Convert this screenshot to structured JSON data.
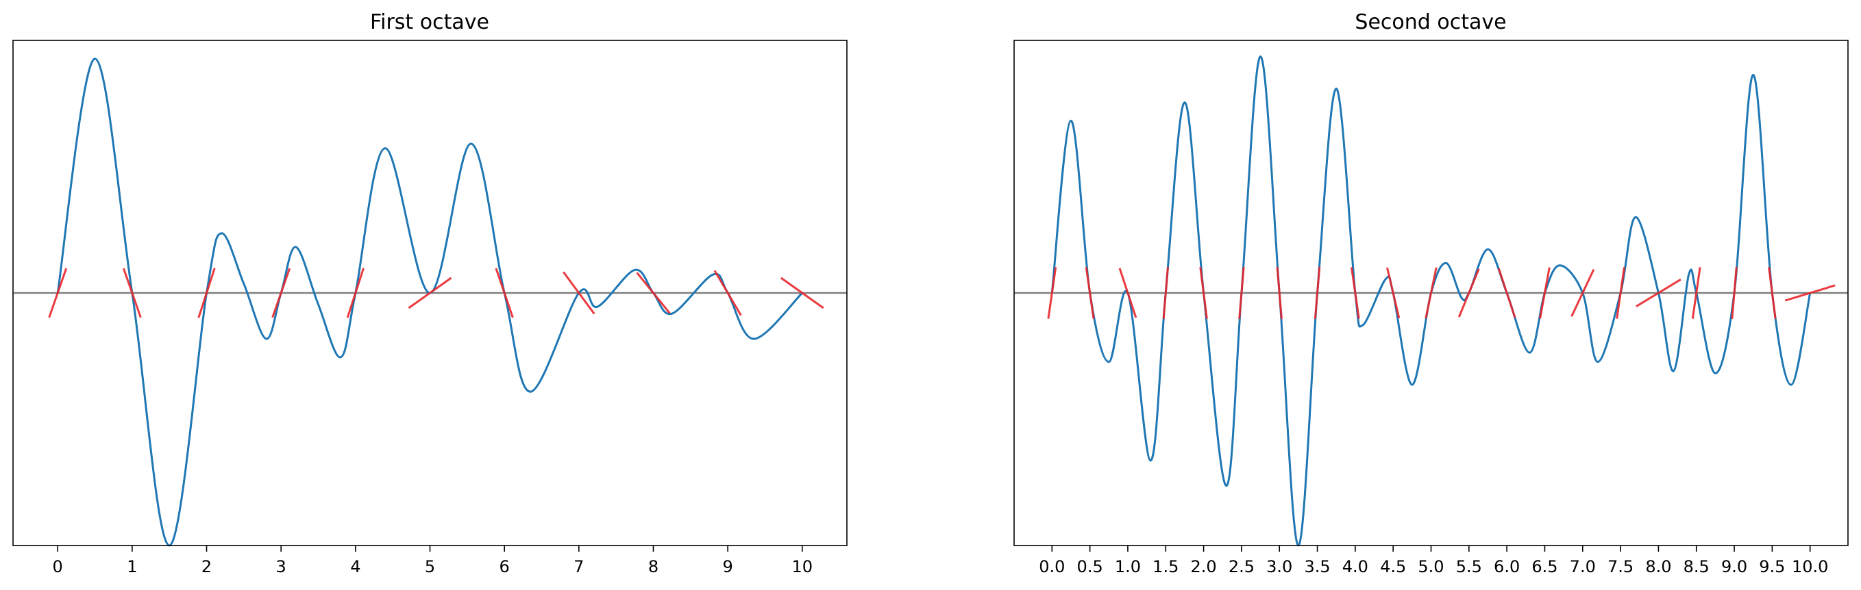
{
  "colors": {
    "curve": "#1f77b4",
    "tangent": "#e8262b",
    "zero_line": "#808080",
    "frame": "#000000"
  },
  "chart_data": [
    {
      "type": "line",
      "title": "First octave",
      "xlabel": "",
      "ylabel": "",
      "xlim": [
        -0.6,
        10.6
      ],
      "ylim": [
        -1.1,
        1.1
      ],
      "xticks": [
        0,
        1,
        2,
        3,
        4,
        5,
        6,
        7,
        8,
        9,
        10
      ],
      "xtick_labels": [
        "0",
        "1",
        "2",
        "3",
        "4",
        "5",
        "6",
        "7",
        "8",
        "9",
        "10"
      ],
      "yticks_visible": false,
      "grid": false,
      "zero_line": 0,
      "knots": [
        0,
        1,
        2,
        3,
        4,
        5,
        6,
        7,
        8,
        9,
        10
      ],
      "slopes": [
        0.93,
        -0.93,
        1.0,
        0.93,
        1.0,
        0.23,
        -0.95,
        -0.44,
        -0.4,
        -0.55,
        -0.23
      ],
      "series": [
        {
          "values": [
            {
              "x": 0,
              "y": 0
            },
            {
              "x": 0.5,
              "y": 1.02
            },
            {
              "x": 1,
              "y": 0
            },
            {
              "x": 1.5,
              "y": -1.1
            },
            {
              "x": 2,
              "y": 0
            },
            {
              "x": 2.2,
              "y": 0.26
            },
            {
              "x": 2.5,
              "y": 0.04
            },
            {
              "x": 2.8,
              "y": -0.2
            },
            {
              "x": 3,
              "y": 0
            },
            {
              "x": 3.2,
              "y": 0.2
            },
            {
              "x": 3.5,
              "y": -0.05
            },
            {
              "x": 3.8,
              "y": -0.28
            },
            {
              "x": 4,
              "y": 0
            },
            {
              "x": 4.4,
              "y": 0.63
            },
            {
              "x": 5,
              "y": 0
            },
            {
              "x": 5.55,
              "y": 0.65
            },
            {
              "x": 6,
              "y": 0
            },
            {
              "x": 6.35,
              "y": -0.43
            },
            {
              "x": 7,
              "y": 0
            },
            {
              "x": 7.25,
              "y": -0.06
            },
            {
              "x": 7.75,
              "y": 0.1
            },
            {
              "x": 8,
              "y": 0
            },
            {
              "x": 8.25,
              "y": -0.09
            },
            {
              "x": 8.8,
              "y": 0.08
            },
            {
              "x": 9,
              "y": 0
            },
            {
              "x": 9.35,
              "y": -0.2
            },
            {
              "x": 10,
              "y": 0
            }
          ]
        }
      ]
    },
    {
      "type": "line",
      "title": "Second octave",
      "xlabel": "",
      "ylabel": "",
      "xlim": [
        -0.5,
        10.5
      ],
      "ylim": [
        -1.1,
        1.1
      ],
      "xticks": [
        0,
        0.5,
        1,
        1.5,
        2,
        2.5,
        3,
        3.5,
        4,
        4.5,
        5,
        5.5,
        6,
        6.5,
        7,
        7.5,
        8,
        8.5,
        9,
        9.5,
        10
      ],
      "xtick_labels": [
        "0.0",
        "0.5",
        "1.0",
        "1.5",
        "2.0",
        "2.5",
        "3.0",
        "3.5",
        "4.0",
        "4.5",
        "5.0",
        "5.5",
        "6.0",
        "6.5",
        "7.0",
        "7.5",
        "8.0",
        "8.5",
        "9.0",
        "9.5",
        "10.0"
      ],
      "yticks_visible": false,
      "grid": false,
      "zero_line": 0,
      "knots": [
        0,
        0.5,
        1,
        1.5,
        2,
        2.5,
        3,
        3.5,
        4,
        4.5,
        5,
        5.5,
        6,
        6.5,
        7,
        7.5,
        8,
        8.5,
        9,
        9.5,
        10
      ],
      "slopes": [
        2.3,
        -2.3,
        -1.0,
        3.9,
        -2.6,
        3.9,
        -3.9,
        3.9,
        -2.3,
        -1.4,
        1.6,
        0.8,
        -1.0,
        1.8,
        0.7,
        2.3,
        0.2,
        2.3,
        3.9,
        -2.6,
        0.1
      ],
      "series": [
        {
          "values": [
            {
              "x": 0,
              "y": 0
            },
            {
              "x": 0.25,
              "y": 0.75
            },
            {
              "x": 0.5,
              "y": 0
            },
            {
              "x": 0.75,
              "y": -0.3
            },
            {
              "x": 1,
              "y": 0
            },
            {
              "x": 1.3,
              "y": -0.73
            },
            {
              "x": 1.5,
              "y": 0
            },
            {
              "x": 1.75,
              "y": 0.83
            },
            {
              "x": 2,
              "y": 0
            },
            {
              "x": 2.3,
              "y": -0.84
            },
            {
              "x": 2.5,
              "y": 0
            },
            {
              "x": 2.75,
              "y": 1.03
            },
            {
              "x": 3,
              "y": 0
            },
            {
              "x": 3.25,
              "y": -1.1
            },
            {
              "x": 3.5,
              "y": 0
            },
            {
              "x": 3.75,
              "y": 0.89
            },
            {
              "x": 4,
              "y": 0
            },
            {
              "x": 4.1,
              "y": -0.14
            },
            {
              "x": 4.4,
              "y": 0.06
            },
            {
              "x": 4.5,
              "y": 0
            },
            {
              "x": 4.75,
              "y": -0.4
            },
            {
              "x": 5,
              "y": 0
            },
            {
              "x": 5.2,
              "y": 0.13
            },
            {
              "x": 5.4,
              "y": -0.02
            },
            {
              "x": 5.5,
              "y": 0
            },
            {
              "x": 5.75,
              "y": 0.19
            },
            {
              "x": 6,
              "y": 0
            },
            {
              "x": 6.3,
              "y": -0.26
            },
            {
              "x": 6.5,
              "y": 0
            },
            {
              "x": 6.7,
              "y": 0.12
            },
            {
              "x": 7,
              "y": 0
            },
            {
              "x": 7.2,
              "y": -0.3
            },
            {
              "x": 7.5,
              "y": 0
            },
            {
              "x": 7.7,
              "y": 0.33
            },
            {
              "x": 8,
              "y": 0
            },
            {
              "x": 8.2,
              "y": -0.34
            },
            {
              "x": 8.4,
              "y": 0.08
            },
            {
              "x": 8.5,
              "y": 0
            },
            {
              "x": 8.75,
              "y": -0.35
            },
            {
              "x": 9,
              "y": 0
            },
            {
              "x": 9.25,
              "y": 0.95
            },
            {
              "x": 9.5,
              "y": 0
            },
            {
              "x": 9.75,
              "y": -0.4
            },
            {
              "x": 10,
              "y": 0
            }
          ]
        }
      ]
    }
  ]
}
